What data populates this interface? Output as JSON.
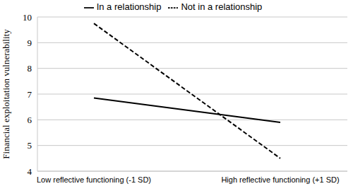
{
  "chart_data": {
    "type": "line",
    "y_label": "Financial exploitation vulnerability",
    "categories": [
      "Low reflective functioning (-1 SD)",
      "High reflective functioning (+1 SD)"
    ],
    "series": [
      {
        "name": "Not in a relationship",
        "color": "#000000",
        "line_style": "dashed",
        "values": [
          9.75,
          4.5
        ]
      },
      {
        "name": "In a relationship",
        "color": "#000000",
        "line_style": "solid",
        "values": [
          6.85,
          5.9
        ]
      }
    ],
    "ylim": [
      4,
      10
    ],
    "yticks": [
      4,
      5,
      6,
      7,
      8,
      9,
      10
    ],
    "grid": true,
    "legend": "top"
  }
}
